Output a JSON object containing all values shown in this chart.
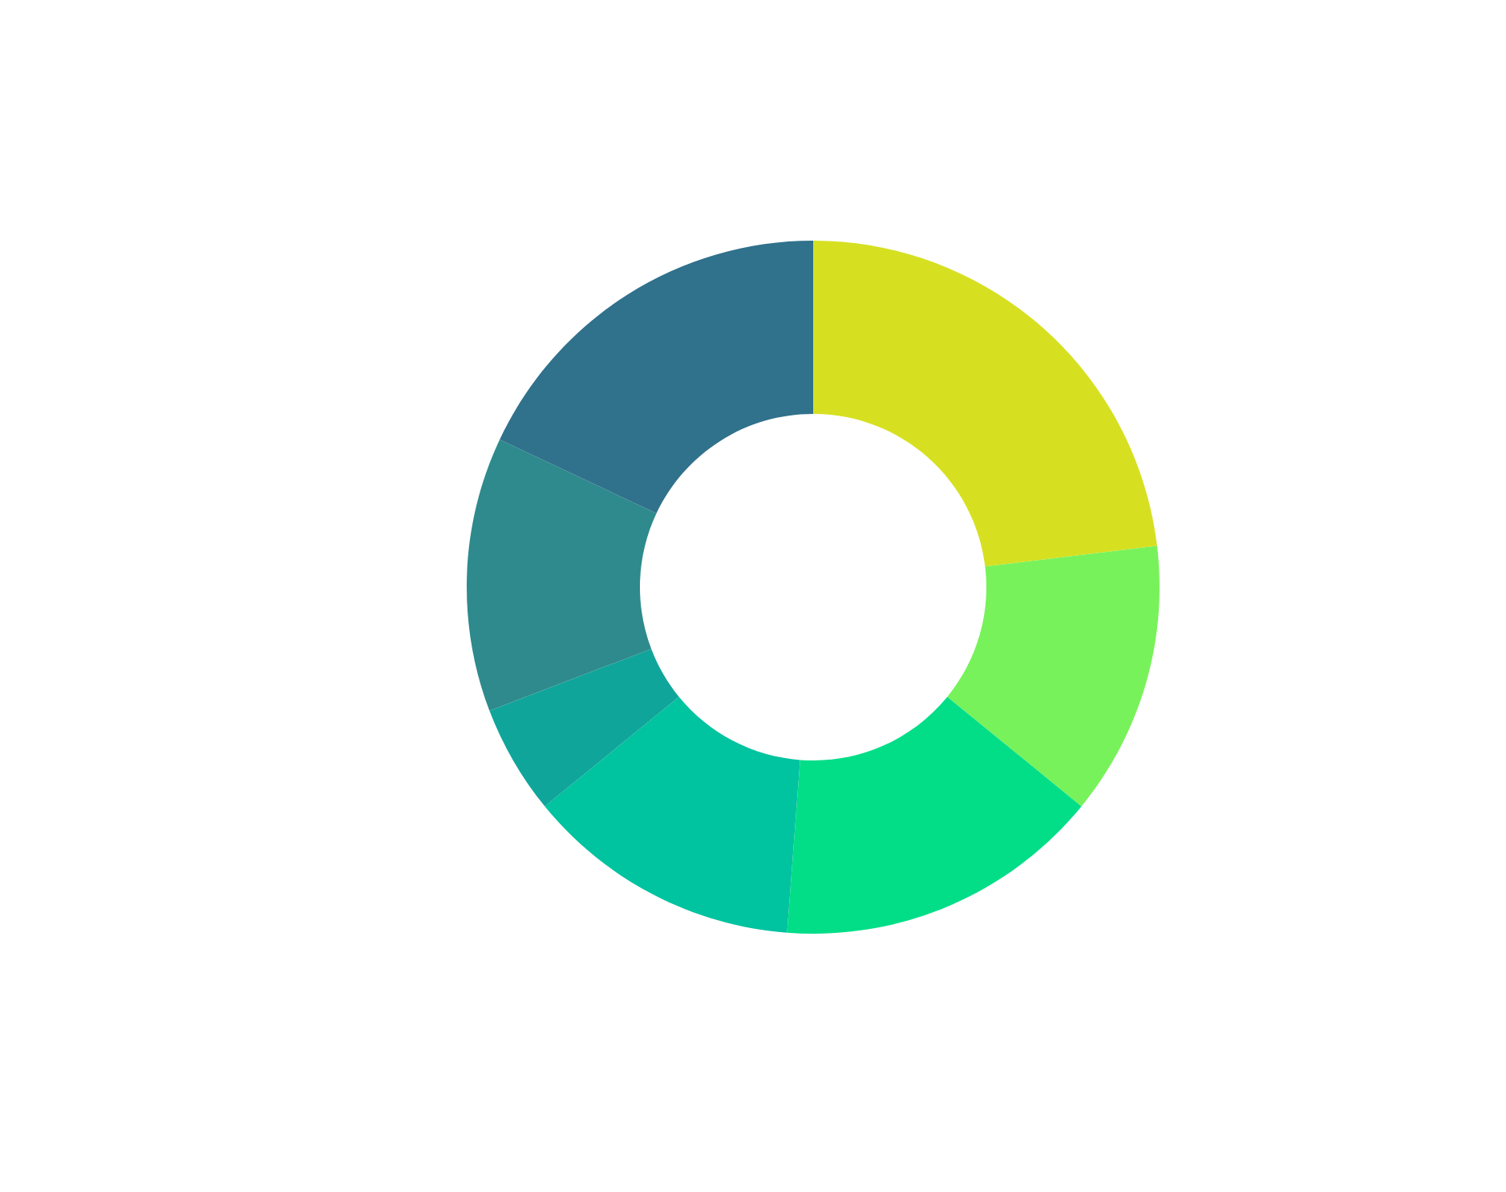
{
  "chart_data": {
    "type": "donut",
    "categories": [
      null,
      null,
      null,
      null,
      null,
      null,
      null
    ],
    "values": [
      23.1,
      12.8,
      15.3,
      12.9,
      5.1,
      12.8,
      18.0
    ],
    "colors": [
      "#d6e021",
      "#78f25a",
      "#02de88",
      "#00c39f",
      "#10a59a",
      "#2e8a8c",
      "#30718c"
    ]
  }
}
